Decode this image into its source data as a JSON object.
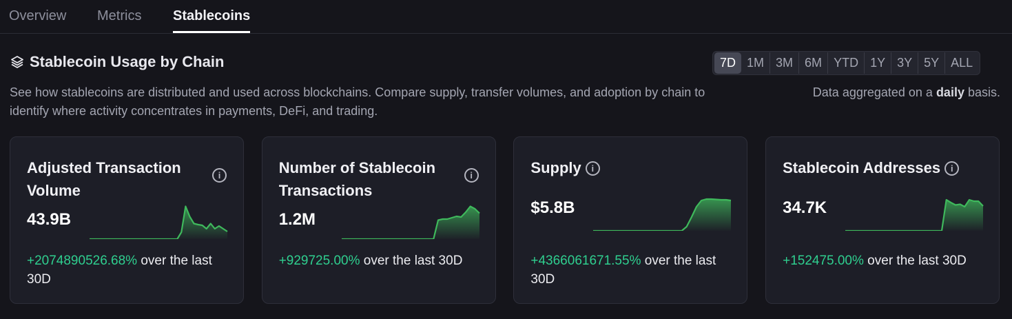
{
  "tabs": [
    {
      "label": "Overview"
    },
    {
      "label": "Metrics"
    },
    {
      "label": "Stablecoins",
      "active": true
    }
  ],
  "section": {
    "icon": "layers-icon",
    "title": "Stablecoin Usage by Chain",
    "description": "See how stablecoins are distributed and used across blockchains. Compare supply, transfer volumes, and adoption by chain to identify where activity concentrates in payments, DeFi, and trading.",
    "aggregation_prefix": "Data aggregated on a ",
    "aggregation_bold": "daily",
    "aggregation_suffix": " basis."
  },
  "ranges": [
    "7D",
    "1M",
    "3M",
    "6M",
    "YTD",
    "1Y",
    "3Y",
    "5Y",
    "ALL"
  ],
  "selected_range": "7D",
  "colors": {
    "accent_green": "#2fcf8f",
    "spark_line": "#3fb95c"
  },
  "cards": [
    {
      "title": "Adjusted Transaction Volume",
      "value": "43.9B",
      "change": "+2074890526.68%",
      "change_suffix": " over the last 30D",
      "sparkline": [
        0,
        0,
        0,
        0,
        0,
        0,
        0,
        0,
        0,
        0,
        0,
        0,
        0,
        0,
        0,
        0,
        0,
        0,
        0,
        0,
        0,
        0,
        0.2,
        0.95,
        0.65,
        0.45,
        0.42,
        0.4,
        0.3,
        0.45,
        0.3,
        0.38,
        0.3,
        0.22
      ]
    },
    {
      "title": "Number of Stablecoin Transactions",
      "value": "1.2M",
      "change": "+929725.00%",
      "change_suffix": " over the last 30D",
      "sparkline": [
        0,
        0,
        0,
        0,
        0,
        0,
        0,
        0,
        0,
        0,
        0,
        0,
        0,
        0,
        0,
        0,
        0,
        0,
        0,
        0,
        0,
        0.55,
        0.58,
        0.58,
        0.62,
        0.66,
        0.64,
        0.78,
        0.95,
        0.88,
        0.75
      ]
    },
    {
      "title": "Supply",
      "value": "$5.8B",
      "change": "+4366061671.55%",
      "change_suffix": " over the last 30D",
      "sparkline": [
        0,
        0,
        0,
        0,
        0,
        0,
        0,
        0,
        0,
        0,
        0,
        0,
        0,
        0,
        0,
        0,
        0,
        0,
        0,
        0.12,
        0.4,
        0.7,
        0.88,
        0.92,
        0.92,
        0.91,
        0.9,
        0.9,
        0.88
      ]
    },
    {
      "title": "Stablecoin Addresses",
      "value": "34.7K",
      "change": "+152475.00%",
      "change_suffix": " over the last 30D",
      "sparkline": [
        0,
        0,
        0,
        0,
        0,
        0,
        0,
        0,
        0,
        0,
        0,
        0,
        0,
        0,
        0,
        0,
        0,
        0,
        0,
        0,
        0,
        0,
        0.9,
        0.82,
        0.75,
        0.77,
        0.7,
        0.9,
        0.86,
        0.86,
        0.72
      ]
    }
  ]
}
